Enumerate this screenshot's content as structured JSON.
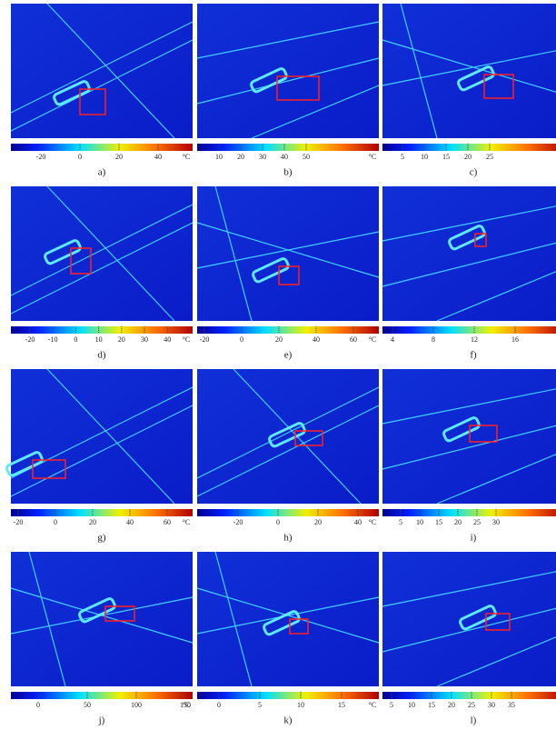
{
  "panels": [
    {
      "label": "a)",
      "ticks": [
        -20,
        0,
        20,
        40
      ],
      "unit": "°C"
    },
    {
      "label": "b)",
      "ticks": [
        10,
        20,
        30,
        40,
        50
      ],
      "unit": "°C"
    },
    {
      "label": "c)",
      "ticks": [
        5,
        10,
        15,
        20,
        25
      ]
    },
    {
      "label": "d)",
      "ticks": [
        -20,
        -10,
        0,
        10,
        20,
        30,
        40
      ],
      "unit": "°C"
    },
    {
      "label": "e)",
      "ticks": [
        -20,
        0,
        20,
        40,
        60
      ],
      "unit": "°C"
    },
    {
      "label": "f)",
      "ticks": [
        4,
        8,
        12,
        16
      ]
    },
    {
      "label": "g)",
      "ticks": [
        -20,
        0,
        20,
        40,
        60
      ],
      "unit": "°C"
    },
    {
      "label": "h)",
      "ticks": [
        -20,
        0,
        20,
        40
      ],
      "unit": "°C"
    },
    {
      "label": "i)",
      "ticks": [
        5,
        10,
        15,
        20,
        25,
        30
      ]
    },
    {
      "label": "j)",
      "ticks": [
        0,
        50,
        100,
        150
      ],
      "unit": "°C"
    },
    {
      "label": "k)",
      "ticks": [
        0,
        5,
        10,
        15
      ],
      "unit": "°C"
    },
    {
      "label": "l)",
      "ticks": [
        5,
        10,
        15,
        20,
        25,
        30,
        35
      ]
    }
  ]
}
